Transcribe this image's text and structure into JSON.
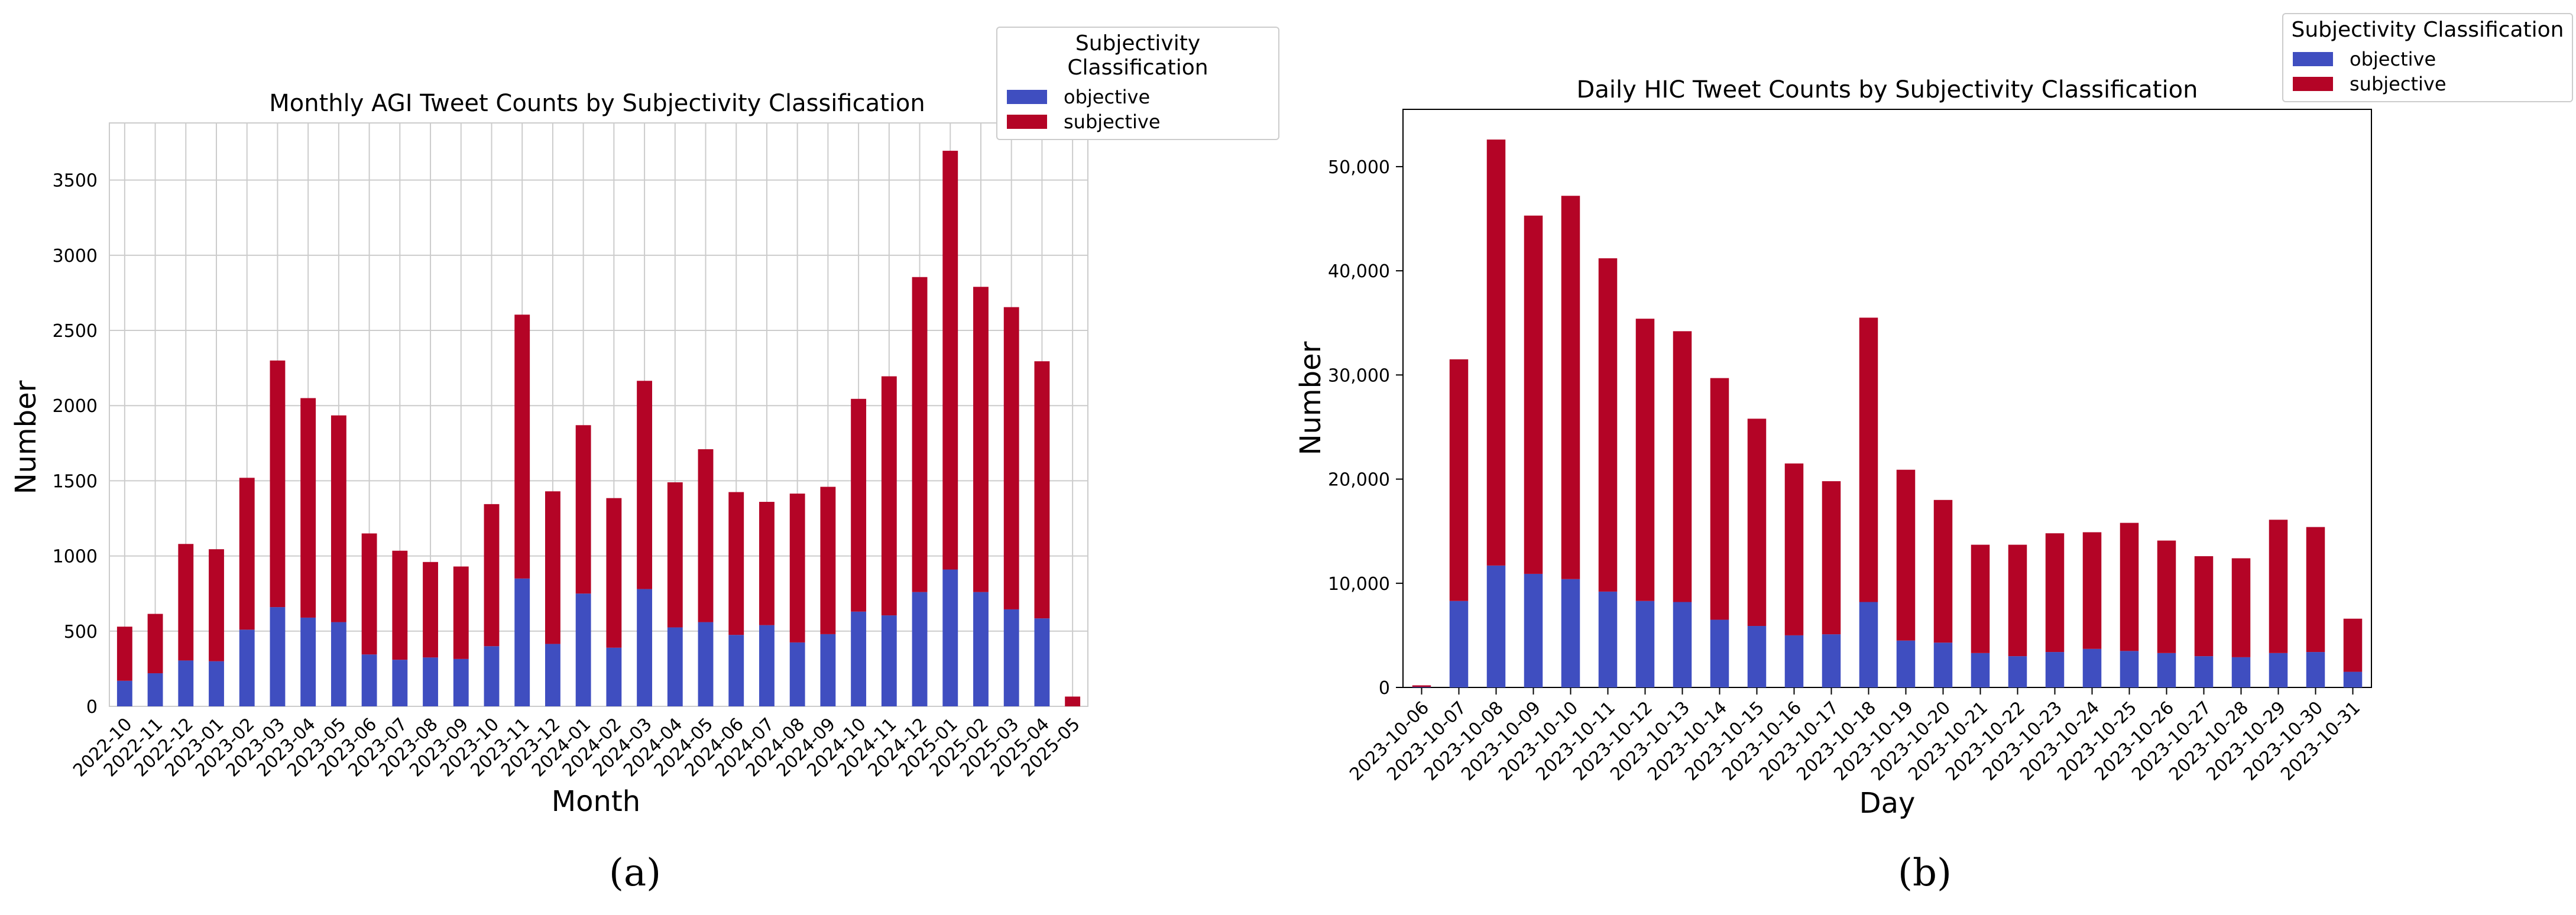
{
  "colors": {
    "objective": "#3f4ec0",
    "subjective": "#b40426"
  },
  "captions": {
    "left": "(a)",
    "right": "(b)"
  },
  "chart_data": [
    {
      "type": "bar",
      "stacked": true,
      "title": "Monthly AGI Tweet Counts by Subjectivity Classification",
      "xlabel": "Month",
      "ylabel": "Number",
      "ylim": [
        0,
        3880
      ],
      "yticks": [
        0,
        500,
        1000,
        1500,
        2000,
        2500,
        3000,
        3500
      ],
      "grid": true,
      "legend": {
        "title": "Subjectivity Classification",
        "placement": "upper-right",
        "entries": [
          "objective",
          "subjective"
        ]
      },
      "categories": [
        "2022-10",
        "2022-11",
        "2022-12",
        "2023-01",
        "2023-02",
        "2023-03",
        "2023-04",
        "2023-05",
        "2023-06",
        "2023-07",
        "2023-08",
        "2023-09",
        "2023-10",
        "2023-11",
        "2023-12",
        "2024-01",
        "2024-02",
        "2024-03",
        "2024-04",
        "2024-05",
        "2024-06",
        "2024-07",
        "2024-08",
        "2024-09",
        "2024-10",
        "2024-11",
        "2024-12",
        "2025-01",
        "2025-02",
        "2025-03",
        "2025-04",
        "2025-05"
      ],
      "series": [
        {
          "name": "objective",
          "values": [
            170,
            220,
            305,
            300,
            510,
            660,
            590,
            560,
            345,
            310,
            325,
            315,
            400,
            850,
            415,
            750,
            390,
            780,
            525,
            560,
            475,
            540,
            425,
            480,
            630,
            605,
            760,
            910,
            760,
            645,
            585,
            0
          ]
        },
        {
          "name": "subjective",
          "values": [
            360,
            395,
            775,
            745,
            1010,
            1640,
            1460,
            1375,
            805,
            725,
            635,
            615,
            945,
            1755,
            1015,
            1120,
            995,
            1385,
            965,
            1150,
            950,
            820,
            990,
            980,
            1415,
            1590,
            2095,
            2785,
            2030,
            2010,
            1710,
            65
          ]
        }
      ]
    },
    {
      "type": "bar",
      "stacked": true,
      "title": "Daily HIC Tweet Counts by Subjectivity Classification",
      "xlabel": "Day",
      "ylabel": "Number",
      "ylim": [
        0,
        55500
      ],
      "yticks": [
        0,
        10000,
        20000,
        30000,
        40000,
        50000
      ],
      "ytick_labels": [
        "0",
        "10,000",
        "20,000",
        "30,000",
        "40,000",
        "50,000"
      ],
      "grid": false,
      "legend": {
        "title": "Subjectivity Classification",
        "placement": "outside-upper-right",
        "entries": [
          "objective",
          "subjective"
        ]
      },
      "categories": [
        "2023-10-06",
        "2023-10-07",
        "2023-10-08",
        "2023-10-09",
        "2023-10-10",
        "2023-10-11",
        "2023-10-12",
        "2023-10-13",
        "2023-10-14",
        "2023-10-15",
        "2023-10-16",
        "2023-10-17",
        "2023-10-18",
        "2023-10-19",
        "2023-10-20",
        "2023-10-21",
        "2023-10-22",
        "2023-10-23",
        "2023-10-24",
        "2023-10-25",
        "2023-10-26",
        "2023-10-27",
        "2023-10-28",
        "2023-10-29",
        "2023-10-30",
        "2023-10-31"
      ],
      "series": [
        {
          "name": "objective",
          "values": [
            50,
            8300,
            11700,
            10900,
            10400,
            9200,
            8300,
            8200,
            6500,
            5900,
            5000,
            5100,
            8200,
            4500,
            4300,
            3300,
            3000,
            3400,
            3700,
            3500,
            3300,
            3000,
            2900,
            3300,
            3400,
            1500
          ]
        },
        {
          "name": "subjective",
          "values": [
            150,
            23200,
            40900,
            34400,
            36800,
            32000,
            27100,
            26000,
            23200,
            19900,
            16500,
            14700,
            27300,
            16400,
            13700,
            10400,
            10700,
            11400,
            11200,
            12300,
            10800,
            9600,
            9500,
            12800,
            12000,
            5100
          ]
        }
      ]
    }
  ]
}
